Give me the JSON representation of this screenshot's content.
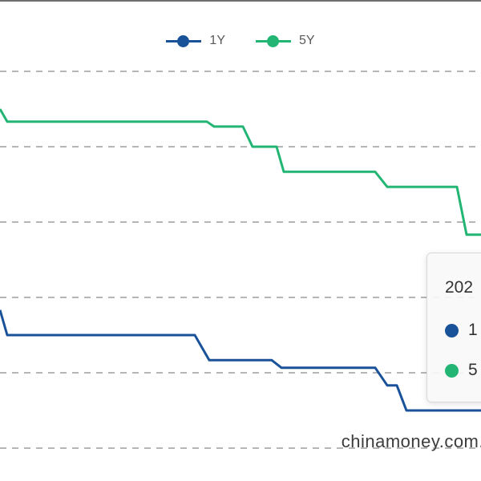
{
  "colors": {
    "series_1y": "#1a5299",
    "series_5y": "#22b573",
    "grid": "#b5b5b5"
  },
  "legend": [
    {
      "label": "1Y",
      "color": "#1a5299"
    },
    {
      "label": "5Y",
      "color": "#22b573"
    }
  ],
  "tooltip": {
    "title": "202",
    "rows": [
      {
        "label": "1",
        "color": "#1a5299"
      },
      {
        "label": "5",
        "color": "#22b573"
      }
    ]
  },
  "watermark": "chinamoney.com.",
  "chart_data": {
    "type": "line",
    "title": "",
    "xlabel": "",
    "ylabel": "",
    "grid": true,
    "legend_position": "top-center",
    "ylim": [
      3.2,
      4.9
    ],
    "xlim": [
      0,
      100
    ],
    "gridlines": [
      3.3,
      3.6,
      3.9,
      4.2,
      4.5,
      4.8
    ],
    "series": [
      {
        "name": "1Y",
        "x": [
          0,
          1.5,
          40.5,
          43.5,
          56.5,
          58.5,
          78,
          80.5,
          82.5,
          84.5,
          100
        ],
        "y": [
          3.85,
          3.75,
          3.75,
          3.65,
          3.65,
          3.62,
          3.62,
          3.55,
          3.55,
          3.45,
          3.45
        ]
      },
      {
        "name": "5Y",
        "x": [
          0,
          1.5,
          43,
          44.5,
          50.5,
          52.5,
          57.5,
          59,
          78,
          80.5,
          95,
          97,
          100
        ],
        "y": [
          4.65,
          4.6,
          4.6,
          4.58,
          4.58,
          4.5,
          4.5,
          4.4,
          4.4,
          4.34,
          4.34,
          4.15,
          4.15
        ]
      }
    ]
  }
}
